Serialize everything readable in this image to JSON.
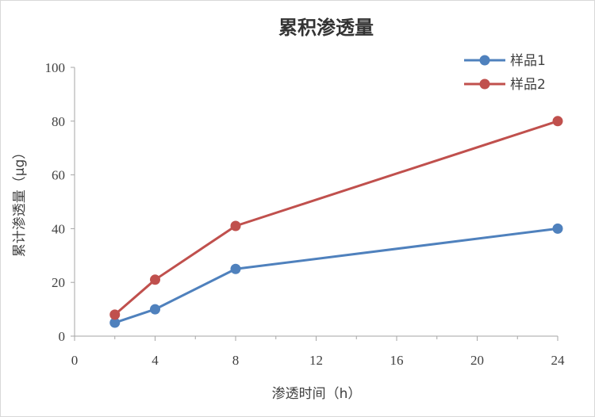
{
  "chart_data": {
    "type": "line",
    "title": "累积渗透量",
    "xlabel": "渗透时间（h）",
    "ylabel": "累计渗透量（μg）",
    "xlim": [
      0,
      24
    ],
    "ylim": [
      0,
      100
    ],
    "xticks": [
      0,
      4,
      8,
      12,
      16,
      20,
      24
    ],
    "yticks": [
      0,
      20,
      40,
      60,
      80,
      100
    ],
    "grid": false,
    "legend_position": "top-right",
    "x": [
      2,
      4,
      8,
      24
    ],
    "series": [
      {
        "name": "样品1",
        "color": "#4f81bd",
        "values": [
          5,
          10,
          25,
          40
        ]
      },
      {
        "name": "样品2",
        "color": "#c0504d",
        "values": [
          8,
          21,
          41,
          80
        ]
      }
    ]
  }
}
